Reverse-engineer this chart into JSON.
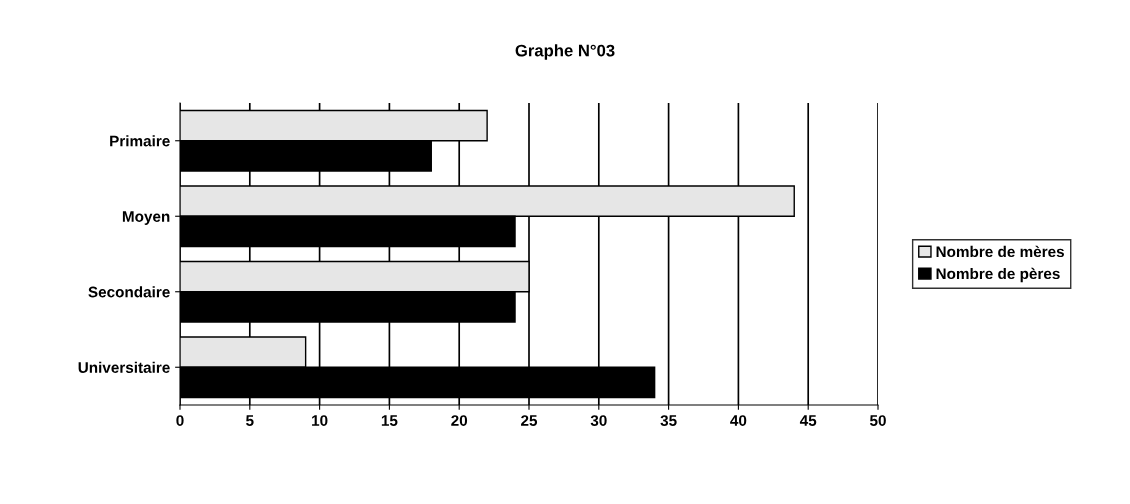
{
  "chart_data": {
    "type": "bar",
    "orientation": "horizontal",
    "title": "Graphe N°03",
    "categories": [
      "Primaire",
      "Moyen",
      "Secondaire",
      "Universitaire"
    ],
    "series": [
      {
        "name": "Nombre de mères",
        "color": "#e6e6e6",
        "values": [
          22,
          44,
          25,
          9
        ]
      },
      {
        "name": "Nombre de pères",
        "color": "#000000",
        "values": [
          18,
          24,
          24,
          34
        ]
      }
    ],
    "xlim": [
      0,
      50
    ],
    "xticks": [
      0,
      5,
      10,
      15,
      20,
      25,
      30,
      35,
      40,
      45,
      50
    ],
    "grid": "x",
    "legend": "right"
  }
}
